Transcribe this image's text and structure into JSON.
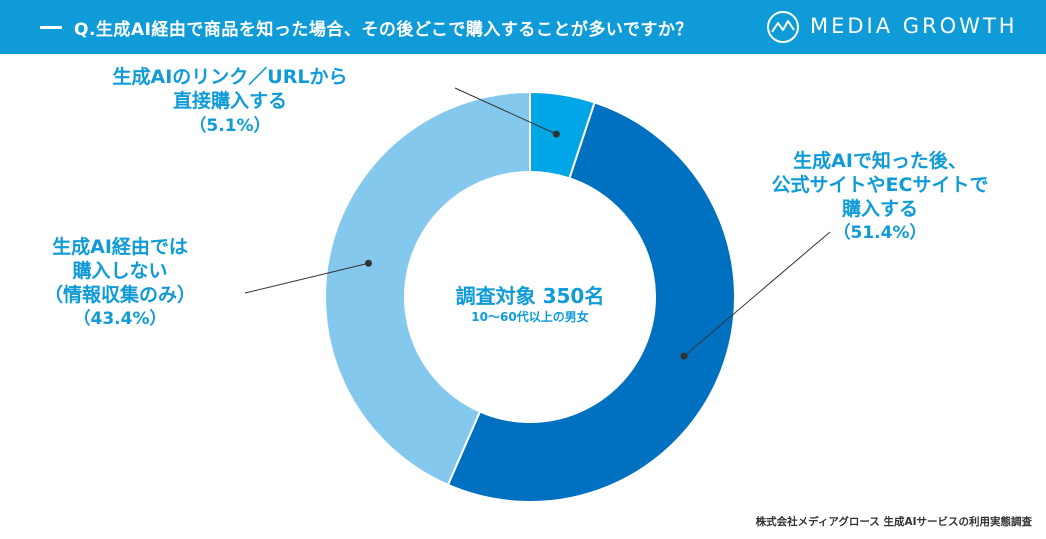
{
  "header": {
    "question": "Q.生成AI経由で商品を知った場合、その後どこで購入することが多いですか？",
    "brand": "MEDIA GROWTH",
    "bg_color": "#0f9bd7"
  },
  "center": {
    "title": "調査対象 350名",
    "subtitle": "10〜60代以上の男女"
  },
  "source": "株式会社メディアグロース 生成AIサービスの利用実態調査",
  "chart_data": {
    "type": "pie",
    "slices": [
      {
        "label_lines": [
          "生成AIのリンク／URLから",
          "直接購入する"
        ],
        "pct_label": "（5.1%）",
        "value": 5.1,
        "color": "#00a6e6"
      },
      {
        "label_lines": [
          "生成AIで知った後、",
          "公式サイトやECサイトで",
          "購入する"
        ],
        "pct_label": "（51.4%）",
        "value": 51.4,
        "color": "#0070c0"
      },
      {
        "label_lines": [
          "生成AI経由では",
          "購入しない",
          "（情報収集のみ）"
        ],
        "pct_label": "（43.4%）",
        "value": 43.4,
        "color": "#85c8ee"
      }
    ]
  }
}
